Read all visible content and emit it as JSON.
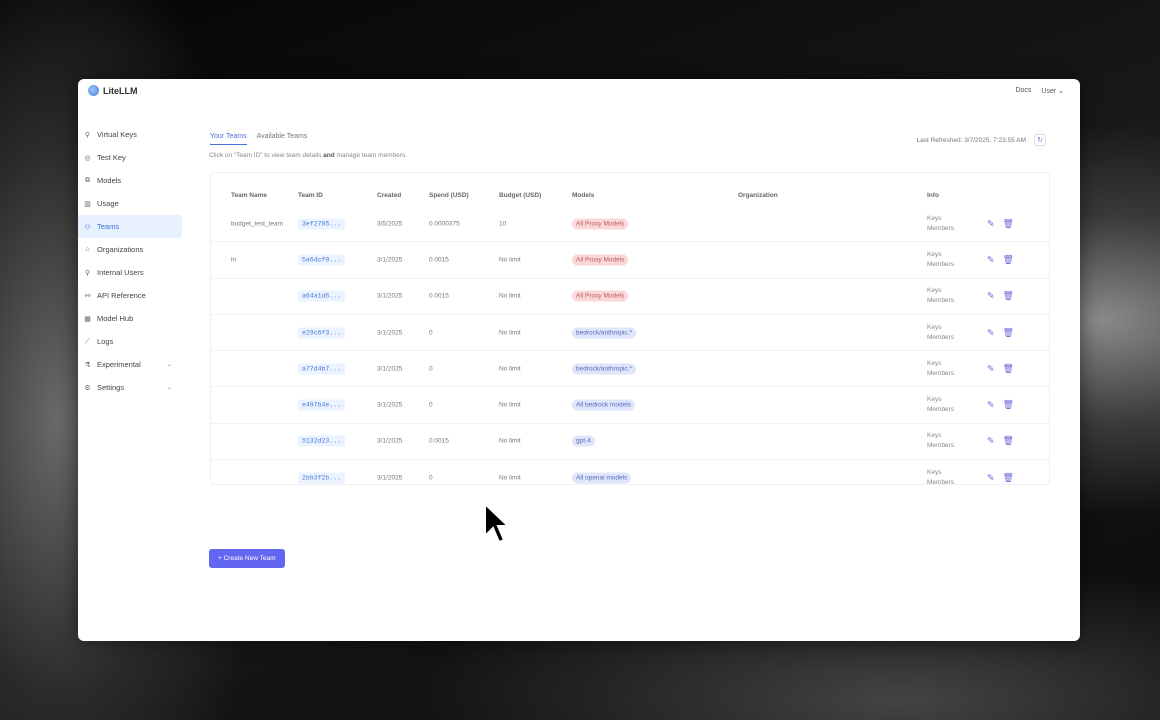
{
  "app": {
    "name": "LiteLLM"
  },
  "header": {
    "docs": "Docs",
    "user": "User"
  },
  "sidebar": {
    "items": [
      {
        "label": "Virtual Keys",
        "icon": "key-icon",
        "glyph": "⚲"
      },
      {
        "label": "Test Key",
        "icon": "play-circle-icon",
        "glyph": "◎"
      },
      {
        "label": "Models",
        "icon": "block-icon",
        "glyph": "⧉"
      },
      {
        "label": "Usage",
        "icon": "bar-chart-icon",
        "glyph": "▥"
      },
      {
        "label": "Teams",
        "icon": "team-icon",
        "glyph": "⚇",
        "active": true
      },
      {
        "label": "Organizations",
        "icon": "bank-icon",
        "glyph": "⌂"
      },
      {
        "label": "Internal Users",
        "icon": "user-icon",
        "glyph": "⚲"
      },
      {
        "label": "API Reference",
        "icon": "api-icon",
        "glyph": "⚯"
      },
      {
        "label": "Model Hub",
        "icon": "apps-icon",
        "glyph": "▦"
      },
      {
        "label": "Logs",
        "icon": "line-chart-icon",
        "glyph": "⟋"
      },
      {
        "label": "Experimental",
        "icon": "experiment-icon",
        "glyph": "⚗",
        "chevron": true
      },
      {
        "label": "Settings",
        "icon": "settings-icon",
        "glyph": "⚙",
        "chevron": true
      }
    ]
  },
  "tabs": [
    "Your Teams",
    "Available Teams"
  ],
  "hint": {
    "pre": "Click on “Team ID” to view team details ",
    "bold": "and",
    "post": " manage team members."
  },
  "refresh": {
    "label": "Last Refreshed: 3/7/2025, 7:23:55 AM",
    "glyph": "↻"
  },
  "table": {
    "columns": [
      "Team Name",
      "Team ID",
      "Created",
      "Spend (USD)",
      "Budget (USD)",
      "Models",
      "Organization",
      "Info"
    ],
    "rows": [
      {
        "name": "budget_test_team",
        "id": "3ef2705...",
        "created": "3/5/2025",
        "spend": "0.0000375",
        "budget": "10",
        "model": "All Proxy Models",
        "model_color": "red",
        "org": "",
        "keys": "Keys",
        "members": "Members"
      },
      {
        "name": "hi",
        "id": "5a64cf0...",
        "created": "3/1/2025",
        "spend": "0.0015",
        "budget": "No limit",
        "model": "All Proxy Models",
        "model_color": "red",
        "org": "",
        "keys": "Keys",
        "members": "Members"
      },
      {
        "name": "",
        "id": "a64a1d6...",
        "created": "3/1/2025",
        "spend": "0.0015",
        "budget": "No limit",
        "model": "All Proxy Models",
        "model_color": "red",
        "org": "",
        "keys": "Keys",
        "members": "Members"
      },
      {
        "name": "",
        "id": "e29c6f3...",
        "created": "3/1/2025",
        "spend": "0",
        "budget": "No limit",
        "model": "bedrock/anthropic.*",
        "model_color": "blue",
        "org": "",
        "keys": "Keys",
        "members": "Members"
      },
      {
        "name": "",
        "id": "a77d4b7...",
        "created": "3/1/2025",
        "spend": "0",
        "budget": "No limit",
        "model": "bedrock/anthropic.*",
        "model_color": "blue",
        "org": "",
        "keys": "Keys",
        "members": "Members"
      },
      {
        "name": "",
        "id": "e497b4e...",
        "created": "3/1/2025",
        "spend": "0",
        "budget": "No limit",
        "model": "All bedrock models",
        "model_color": "blue",
        "org": "",
        "keys": "Keys",
        "members": "Members"
      },
      {
        "name": "",
        "id": "5132d23...",
        "created": "3/1/2025",
        "spend": "0.0015",
        "budget": "No limit",
        "model": "gpt-4",
        "model_color": "blue",
        "org": "",
        "keys": "Keys",
        "members": "Members"
      },
      {
        "name": "",
        "id": "2bb3f2b...",
        "created": "3/1/2025",
        "spend": "0",
        "budget": "No limit",
        "model": "All openai models",
        "model_color": "blue",
        "org": "",
        "keys": "Keys",
        "members": "Members"
      }
    ]
  },
  "create_button": "+ Create New Team"
}
